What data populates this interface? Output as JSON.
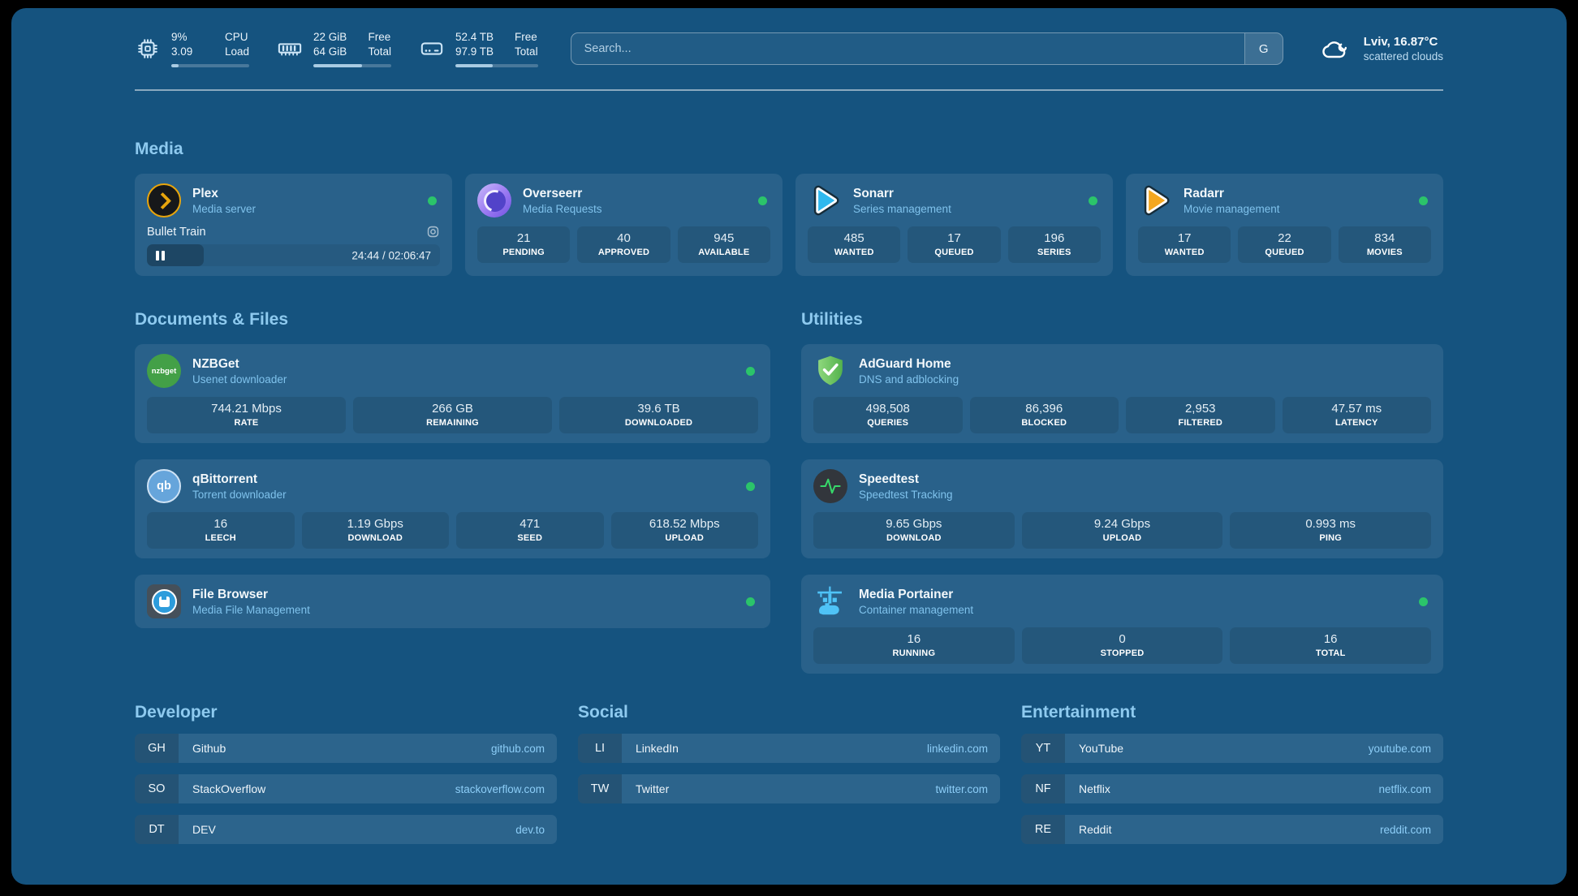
{
  "colors": {
    "background": "#15537f",
    "accent_text": "#8ecaef",
    "status_online": "#2bc46a"
  },
  "header": {
    "stats": [
      {
        "icon": "cpu-icon",
        "line1_value": "9%",
        "line2_value": "3.09",
        "line1_label": "CPU",
        "line2_label": "Load",
        "progress_pct": 9
      },
      {
        "icon": "memory-icon",
        "line1_value": "22 GiB",
        "line2_value": "64 GiB",
        "line1_label": "Free",
        "line2_label": "Total",
        "progress_pct": 62
      },
      {
        "icon": "disk-icon",
        "line1_value": "52.4 TB",
        "line2_value": "97.9 TB",
        "line1_label": "Free",
        "line2_label": "Total",
        "progress_pct": 45
      }
    ],
    "search": {
      "placeholder": "Search...",
      "provider": "G"
    },
    "weather": {
      "icon": "cloud-icon",
      "title": "Lviv, 16.87°C",
      "subtitle": "scattered clouds"
    }
  },
  "media": {
    "title": "Media",
    "plex": {
      "icon": "plex-icon",
      "name": "Plex",
      "desc": "Media server",
      "status": "online",
      "now_playing": {
        "title": "Bullet Train",
        "time": "24:44 / 02:06:47",
        "progress_pct": 19.5
      }
    },
    "overseerr": {
      "icon": "overseerr-icon",
      "name": "Overseerr",
      "desc": "Media Requests",
      "status": "online",
      "stats": [
        {
          "value": "21",
          "label": "PENDING"
        },
        {
          "value": "40",
          "label": "APPROVED"
        },
        {
          "value": "945",
          "label": "AVAILABLE"
        }
      ]
    },
    "sonarr": {
      "icon": "sonarr-icon",
      "name": "Sonarr",
      "desc": "Series management",
      "status": "online",
      "stats": [
        {
          "value": "485",
          "label": "WANTED"
        },
        {
          "value": "17",
          "label": "QUEUED"
        },
        {
          "value": "196",
          "label": "SERIES"
        }
      ]
    },
    "radarr": {
      "icon": "radarr-icon",
      "name": "Radarr",
      "desc": "Movie management",
      "status": "online",
      "stats": [
        {
          "value": "17",
          "label": "WANTED"
        },
        {
          "value": "22",
          "label": "QUEUED"
        },
        {
          "value": "834",
          "label": "MOVIES"
        }
      ]
    }
  },
  "documents": {
    "title": "Documents & Files",
    "nzbget": {
      "icon": "nzbget-icon",
      "icon_text": "nzbget",
      "name": "NZBGet",
      "desc": "Usenet downloader",
      "status": "online",
      "stats": [
        {
          "value": "744.21 Mbps",
          "label": "RATE"
        },
        {
          "value": "266 GB",
          "label": "REMAINING"
        },
        {
          "value": "39.6 TB",
          "label": "DOWNLOADED"
        }
      ]
    },
    "qbittorrent": {
      "icon": "qbittorrent-icon",
      "icon_text": "qb",
      "name": "qBittorrent",
      "desc": "Torrent downloader",
      "status": "online",
      "stats": [
        {
          "value": "16",
          "label": "LEECH"
        },
        {
          "value": "1.19 Gbps",
          "label": "DOWNLOAD"
        },
        {
          "value": "471",
          "label": "SEED"
        },
        {
          "value": "618.52 Mbps",
          "label": "UPLOAD"
        }
      ]
    },
    "filebrowser": {
      "icon": "filebrowser-icon",
      "name": "File Browser",
      "desc": "Media File Management",
      "status": "online"
    }
  },
  "utilities": {
    "title": "Utilities",
    "adguard": {
      "icon": "adguard-icon",
      "name": "AdGuard Home",
      "desc": "DNS and adblocking",
      "stats": [
        {
          "value": "498,508",
          "label": "QUERIES"
        },
        {
          "value": "86,396",
          "label": "BLOCKED"
        },
        {
          "value": "2,953",
          "label": "FILTERED"
        },
        {
          "value": "47.57 ms",
          "label": "LATENCY"
        }
      ]
    },
    "speedtest": {
      "icon": "speedtest-icon",
      "name": "Speedtest",
      "desc": "Speedtest Tracking",
      "stats": [
        {
          "value": "9.65 Gbps",
          "label": "DOWNLOAD"
        },
        {
          "value": "9.24 Gbps",
          "label": "UPLOAD"
        },
        {
          "value": "0.993 ms",
          "label": "PING"
        }
      ]
    },
    "portainer": {
      "icon": "portainer-icon",
      "name": "Media Portainer",
      "desc": "Container management",
      "status": "online",
      "stats": [
        {
          "value": "16",
          "label": "RUNNING"
        },
        {
          "value": "0",
          "label": "STOPPED"
        },
        {
          "value": "16",
          "label": "TOTAL"
        }
      ]
    }
  },
  "bookmarks": [
    {
      "title": "Developer",
      "items": [
        {
          "abbr": "GH",
          "name": "Github",
          "url": "github.com"
        },
        {
          "abbr": "SO",
          "name": "StackOverflow",
          "url": "stackoverflow.com"
        },
        {
          "abbr": "DT",
          "name": "DEV",
          "url": "dev.to"
        }
      ]
    },
    {
      "title": "Social",
      "items": [
        {
          "abbr": "LI",
          "name": "LinkedIn",
          "url": "linkedin.com"
        },
        {
          "abbr": "TW",
          "name": "Twitter",
          "url": "twitter.com"
        }
      ]
    },
    {
      "title": "Entertainment",
      "items": [
        {
          "abbr": "YT",
          "name": "YouTube",
          "url": "youtube.com"
        },
        {
          "abbr": "NF",
          "name": "Netflix",
          "url": "netflix.com"
        },
        {
          "abbr": "RE",
          "name": "Reddit",
          "url": "reddit.com"
        }
      ]
    }
  ]
}
